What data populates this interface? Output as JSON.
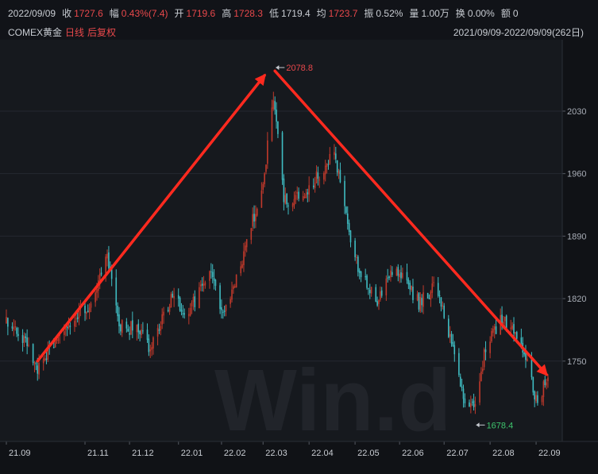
{
  "header": {
    "stats": [
      {
        "label": "2022/09/09",
        "value": "",
        "color": "gray"
      },
      {
        "label": "收",
        "value": "1727.6",
        "color": "red"
      },
      {
        "label": "幅",
        "value": "0.43%(7.4)",
        "color": "red"
      },
      {
        "label": "开",
        "value": "1719.6",
        "color": "red"
      },
      {
        "label": "高",
        "value": "1728.3",
        "color": "red"
      },
      {
        "label": "低",
        "value": "1719.4",
        "color": "gray"
      },
      {
        "label": "均",
        "value": "1723.7",
        "color": "red"
      },
      {
        "label": "振",
        "value": "0.52%",
        "color": "gray"
      },
      {
        "label": "量",
        "value": "1.00万",
        "color": "gray"
      },
      {
        "label": "换",
        "value": "0.00%",
        "color": "gray"
      },
      {
        "label": "额",
        "value": "0",
        "color": "gray"
      }
    ],
    "instrument": "COMEX黄金",
    "period": "日线",
    "adjust": "后复权",
    "date_range": "2021/09/09-2022/09/09(262日)"
  },
  "watermark": "Win.d",
  "colors": {
    "up": "#c0392b",
    "down": "#3fbcc2",
    "arrow": "#ff2a1f",
    "bg": "#16191e",
    "grid": "#242830"
  },
  "chart_data": {
    "type": "candlestick",
    "ylim": [
      1660,
      2110
    ],
    "yticks": [
      1750,
      1820,
      1890,
      1960,
      2030
    ],
    "x_tick_labels": [
      "21.09",
      "21.11",
      "21.12",
      "22.01",
      "22.02",
      "22.03",
      "22.04",
      "22.05",
      "22.06",
      "22.07",
      "22.08",
      "22.09"
    ],
    "x_tick_dates": [
      "2021-09-09",
      "2021-11-01",
      "2021-12-01",
      "2022-01-03",
      "2022-02-01",
      "2022-03-01",
      "2022-04-01",
      "2022-05-02",
      "2022-06-01",
      "2022-07-01",
      "2022-08-01",
      "2022-09-01"
    ],
    "date_range": [
      "2021-09-09",
      "2022-09-09"
    ],
    "annotations": [
      {
        "text": "2078.8",
        "date": "2022-03-08",
        "value": 2078.8,
        "color": "#e8484b"
      },
      {
        "text": "1678.4",
        "date": "2022-07-21",
        "value": 1678.4,
        "color": "#3ec46d"
      }
    ],
    "trend_arrows": [
      {
        "from": {
          "date": "2021-09-30",
          "value": 1750
        },
        "to": {
          "date": "2022-03-02",
          "value": 2070
        }
      },
      {
        "from": {
          "date": "2022-03-09",
          "value": 2075
        },
        "to": {
          "date": "2022-09-08",
          "value": 1735
        }
      }
    ],
    "anchors": [
      {
        "date": "2021-09-09",
        "value": 1794
      },
      {
        "date": "2021-09-22",
        "value": 1775
      },
      {
        "date": "2021-09-30",
        "value": 1742
      },
      {
        "date": "2021-10-06",
        "value": 1758
      },
      {
        "date": "2021-10-22",
        "value": 1795
      },
      {
        "date": "2021-11-05",
        "value": 1815
      },
      {
        "date": "2021-11-16",
        "value": 1865
      },
      {
        "date": "2021-11-19",
        "value": 1848
      },
      {
        "date": "2021-11-24",
        "value": 1790
      },
      {
        "date": "2021-12-08",
        "value": 1785
      },
      {
        "date": "2021-12-15",
        "value": 1765
      },
      {
        "date": "2021-12-31",
        "value": 1828
      },
      {
        "date": "2022-01-07",
        "value": 1796
      },
      {
        "date": "2022-01-25",
        "value": 1850
      },
      {
        "date": "2022-02-01",
        "value": 1800
      },
      {
        "date": "2022-02-10",
        "value": 1835
      },
      {
        "date": "2022-02-24",
        "value": 1920
      },
      {
        "date": "2022-03-01",
        "value": 1945
      },
      {
        "date": "2022-03-08",
        "value": 2050
      },
      {
        "date": "2022-03-15",
        "value": 1930
      },
      {
        "date": "2022-03-28",
        "value": 1935
      },
      {
        "date": "2022-04-18",
        "value": 1985
      },
      {
        "date": "2022-05-02",
        "value": 1865
      },
      {
        "date": "2022-05-16",
        "value": 1815
      },
      {
        "date": "2022-05-30",
        "value": 1855
      },
      {
        "date": "2022-06-14",
        "value": 1815
      },
      {
        "date": "2022-06-24",
        "value": 1832
      },
      {
        "date": "2022-07-01",
        "value": 1805
      },
      {
        "date": "2022-07-14",
        "value": 1708
      },
      {
        "date": "2022-07-21",
        "value": 1698
      },
      {
        "date": "2022-07-29",
        "value": 1765
      },
      {
        "date": "2022-08-10",
        "value": 1800
      },
      {
        "date": "2022-08-16",
        "value": 1782
      },
      {
        "date": "2022-08-26",
        "value": 1750
      },
      {
        "date": "2022-09-01",
        "value": 1708
      },
      {
        "date": "2022-09-09",
        "value": 1727.6
      }
    ]
  }
}
